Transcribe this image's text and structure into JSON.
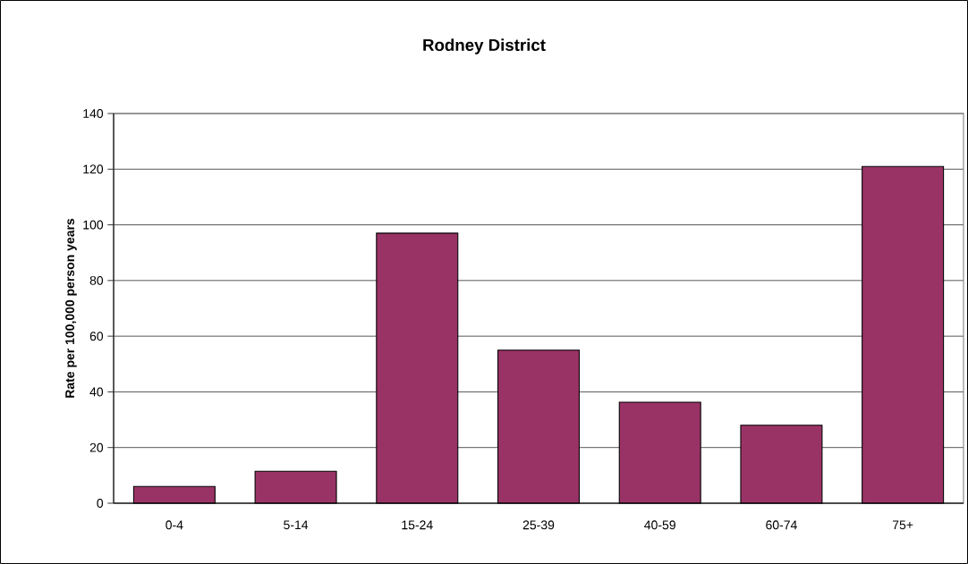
{
  "chart_data": {
    "type": "bar",
    "title": "Rodney District",
    "ylabel": "Rate per 100,000 person years",
    "categories": [
      "0-4",
      "5-14",
      "15-24",
      "25-39",
      "40-59",
      "60-74",
      "75+"
    ],
    "values": [
      6,
      11.5,
      97,
      55,
      36.3,
      28,
      121
    ],
    "color": "#993366",
    "ylim": [
      0,
      140
    ],
    "yticks": [
      0,
      20,
      40,
      60,
      80,
      100,
      120,
      140
    ],
    "grid": "y"
  }
}
